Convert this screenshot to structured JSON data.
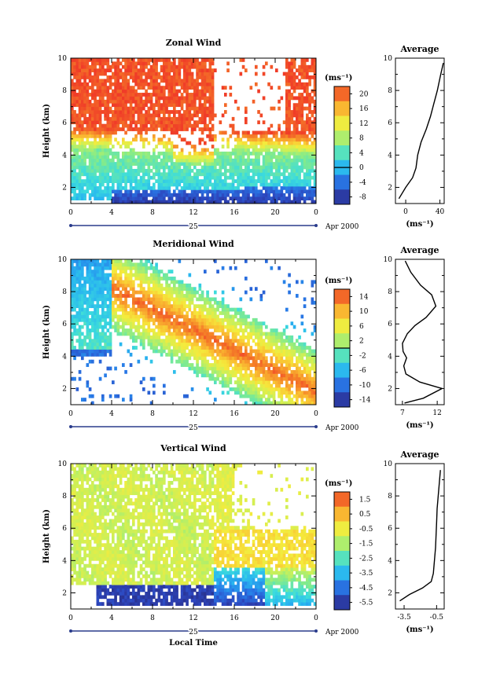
{
  "chart_data": [
    {
      "type": "heatmap",
      "title": "Zonal Wind",
      "ylabel": "Height (km)",
      "xlabel": "",
      "x_ticks": [
        "0",
        "4",
        "8",
        "12",
        "16",
        "20",
        "0"
      ],
      "y_ticks": [
        "2",
        "4",
        "6",
        "8",
        "10"
      ],
      "xlim": [
        0,
        24
      ],
      "ylim": [
        1,
        10
      ],
      "day_label": "25",
      "month_label": "Apr 2000",
      "units": "(ms⁻¹)",
      "colorbar_ticks": [
        "20",
        "16",
        "12",
        "8",
        "4",
        "0",
        "-4",
        "-8"
      ],
      "colorbar_range": [
        -10,
        22
      ],
      "zero_contour": true,
      "profile": {
        "title": "Average",
        "xlabel": "(ms⁻¹)",
        "x_ticks": [
          "0",
          "40"
        ],
        "xlim": [
          -12,
          45
        ],
        "y_ticks": [
          "2",
          "4",
          "6",
          "8",
          "10"
        ],
        "ylim": [
          1,
          10
        ],
        "points": [
          [
            -8,
            1.3
          ],
          [
            0,
            2.0
          ],
          [
            8,
            2.6
          ],
          [
            12,
            3.2
          ],
          [
            14,
            4.0
          ],
          [
            18,
            4.8
          ],
          [
            24,
            5.6
          ],
          [
            29,
            6.4
          ],
          [
            33,
            7.2
          ],
          [
            37,
            8.0
          ],
          [
            41,
            9.0
          ],
          [
            44,
            9.7
          ]
        ]
      }
    },
    {
      "type": "heatmap",
      "title": "Meridional Wind",
      "ylabel": "Height (km)",
      "xlabel": "",
      "x_ticks": [
        "0",
        "4",
        "8",
        "12",
        "16",
        "20",
        "0"
      ],
      "y_ticks": [
        "2",
        "4",
        "6",
        "8",
        "10"
      ],
      "xlim": [
        0,
        24
      ],
      "ylim": [
        1,
        10
      ],
      "day_label": "25",
      "month_label": "Apr 2000",
      "units": "(ms⁻¹)",
      "colorbar_ticks": [
        "14",
        "10",
        "6",
        "2",
        "-2",
        "-6",
        "-10",
        "-14"
      ],
      "colorbar_range": [
        -16,
        16
      ],
      "zero_contour": true,
      "profile": {
        "title": "Average",
        "xlabel": "(ms⁻¹)",
        "x_ticks": [
          "7",
          "12"
        ],
        "xlim": [
          6,
          13
        ],
        "y_ticks": [
          "2",
          "4",
          "6",
          "8",
          "10"
        ],
        "ylim": [
          1,
          10
        ],
        "points": [
          [
            7.3,
            1.1
          ],
          [
            10.0,
            1.4
          ],
          [
            12.7,
            2.0
          ],
          [
            9.5,
            2.4
          ],
          [
            7.5,
            2.9
          ],
          [
            7.2,
            3.4
          ],
          [
            7.6,
            3.9
          ],
          [
            7.1,
            4.3
          ],
          [
            7.0,
            4.8
          ],
          [
            7.7,
            5.4
          ],
          [
            8.8,
            5.9
          ],
          [
            10.4,
            6.4
          ],
          [
            11.8,
            7.1
          ],
          [
            11.2,
            7.8
          ],
          [
            9.6,
            8.4
          ],
          [
            8.2,
            9.2
          ],
          [
            7.4,
            9.9
          ]
        ]
      }
    },
    {
      "type": "heatmap",
      "title": "Vertical Wind",
      "ylabel": "Height (km)",
      "xlabel": "Local Time",
      "x_ticks": [
        "0",
        "4",
        "8",
        "12",
        "16",
        "20",
        "0"
      ],
      "y_ticks": [
        "2",
        "4",
        "6",
        "8",
        "10"
      ],
      "xlim": [
        0,
        24
      ],
      "ylim": [
        1,
        10
      ],
      "day_label": "25",
      "month_label": "Apr 2000",
      "units": "(ms⁻¹)",
      "colorbar_ticks": [
        "1.5",
        "0.5",
        "-0.5",
        "-1.5",
        "-2.5",
        "-3.5",
        "-4.5",
        "-5.5"
      ],
      "colorbar_range": [
        -6.5,
        2.5
      ],
      "zero_contour": false,
      "profile": {
        "title": "Average",
        "xlabel": "(ms⁻¹)",
        "x_ticks": [
          "-3.5",
          "-0.5"
        ],
        "xlim": [
          -4.3,
          0.2
        ],
        "y_ticks": [
          "2",
          "4",
          "6",
          "8",
          "10"
        ],
        "ylim": [
          1,
          10
        ],
        "points": [
          [
            -3.9,
            1.5
          ],
          [
            -3.0,
            1.9
          ],
          [
            -1.8,
            2.3
          ],
          [
            -1.0,
            2.7
          ],
          [
            -0.8,
            3.2
          ],
          [
            -0.7,
            4.0
          ],
          [
            -0.6,
            4.8
          ],
          [
            -0.55,
            5.6
          ],
          [
            -0.5,
            6.4
          ],
          [
            -0.45,
            7.2
          ],
          [
            -0.35,
            8.0
          ],
          [
            -0.25,
            8.8
          ],
          [
            -0.15,
            9.6
          ]
        ]
      }
    }
  ]
}
